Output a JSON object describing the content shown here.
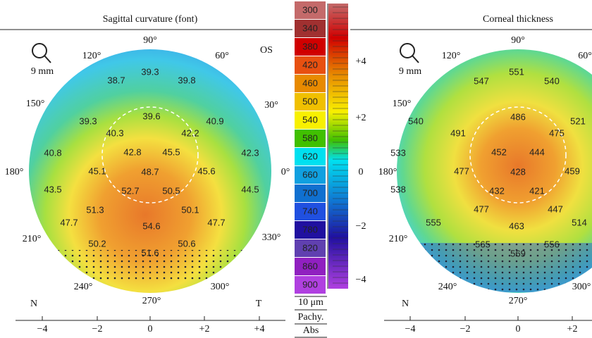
{
  "left_panel": {
    "title": "Sagittal curvature (font)",
    "eye": "OS",
    "scale_label": "9 mm",
    "angles": [
      "90°",
      "120°",
      "60°",
      "150°",
      "30°",
      "180°",
      "0°",
      "210°",
      "330°",
      "240°",
      "300°",
      "270°"
    ],
    "orientation": [
      "N",
      "T"
    ],
    "x_ticks": [
      "−4",
      "−2",
      "0",
      "+2",
      "+4"
    ],
    "values": [
      "38.7",
      "39.3",
      "39.8",
      "39.3",
      "39.6",
      "40.9",
      "40.3",
      "42.2",
      "40.8",
      "42.8",
      "45.5",
      "42.3",
      "45.1",
      "48.7",
      "45.6",
      "43.5",
      "52.7",
      "50.5",
      "44.5",
      "51.3",
      "50.1",
      "47.7",
      "54.6",
      "47.7",
      "50.2",
      "50.6",
      "51.6"
    ]
  },
  "scale": {
    "values": [
      "300",
      "340",
      "380",
      "420",
      "460",
      "500",
      "540",
      "580",
      "620",
      "660",
      "700",
      "740",
      "780",
      "820",
      "860",
      "900"
    ],
    "unit": "10 μm",
    "labels": [
      "Pachy.",
      "Abs"
    ],
    "ruler_ticks": [
      "+4",
      "+2",
      "0",
      "−2",
      "−4"
    ]
  },
  "right_panel": {
    "title": "Corneal thickness",
    "scale_label": "9 mm",
    "angles": [
      "90°",
      "120°",
      "60°",
      "150°",
      "180°",
      "210°",
      "240°",
      "300°",
      "270°"
    ],
    "orientation": [
      "N"
    ],
    "x_ticks": [
      "−4",
      "−2",
      "0",
      "+2"
    ],
    "values": [
      "551",
      "547",
      "540",
      "540",
      "486",
      "521",
      "491",
      "475",
      "533",
      "452",
      "444",
      "477",
      "428",
      "459",
      "538",
      "432",
      "421",
      "477",
      "447",
      "555",
      "463",
      "514",
      "565",
      "569",
      "556"
    ]
  }
}
